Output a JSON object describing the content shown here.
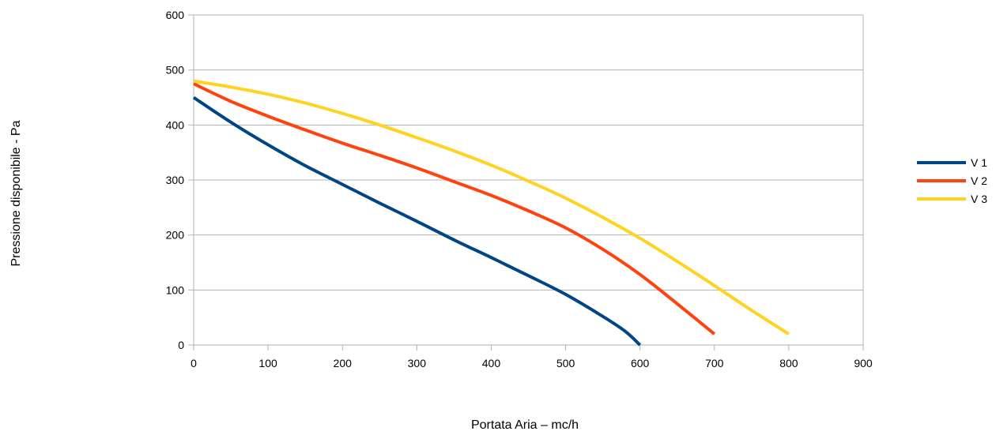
{
  "chart_data": {
    "type": "line",
    "title": "",
    "xlabel": "Portata Aria – mc/h",
    "ylabel": "Pressione disponibile - Pa",
    "xlim": [
      0,
      900
    ],
    "ylim": [
      0,
      600
    ],
    "xticks": [
      0,
      100,
      200,
      300,
      400,
      500,
      600,
      700,
      800,
      900
    ],
    "yticks": [
      0,
      100,
      200,
      300,
      400,
      500,
      600
    ],
    "grid": "horizontal",
    "legend_position": "right",
    "series": [
      {
        "name": "V 1",
        "color": "#004586",
        "x": [
          0,
          50,
          100,
          150,
          200,
          250,
          300,
          350,
          400,
          450,
          500,
          550,
          580,
          600
        ],
        "y": [
          450,
          405,
          364,
          326,
          292,
          258,
          225,
          191,
          159,
          126,
          92,
          52,
          25,
          0
        ]
      },
      {
        "name": "V 2",
        "color": "#ff420e",
        "x": [
          0,
          50,
          100,
          150,
          200,
          250,
          300,
          350,
          400,
          450,
          500,
          550,
          600,
          650,
          700
        ],
        "y": [
          475,
          443,
          416,
          391,
          367,
          345,
          322,
          297,
          272,
          244,
          213,
          174,
          128,
          75,
          20
        ]
      },
      {
        "name": "V 3",
        "color": "#ffd320",
        "x": [
          0,
          50,
          100,
          150,
          200,
          250,
          300,
          350,
          400,
          450,
          500,
          550,
          600,
          650,
          700,
          750,
          800
        ],
        "y": [
          480,
          469,
          456,
          440,
          421,
          400,
          377,
          353,
          327,
          298,
          267,
          232,
          194,
          152,
          108,
          63,
          20
        ]
      }
    ]
  }
}
